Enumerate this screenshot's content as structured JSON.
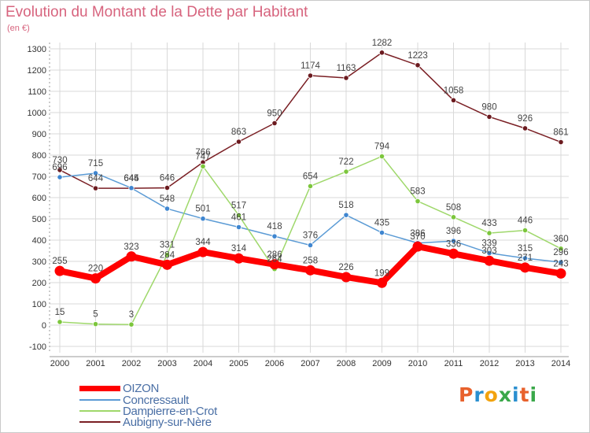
{
  "header": {
    "title": "Evolution du Montant de la Dette par Habitant",
    "subtitle": "(en €)"
  },
  "brand": {
    "text": "Proxiti",
    "letters": [
      "P",
      "r",
      "o",
      "x",
      "i",
      "t",
      "i"
    ],
    "letter_colors": [
      "#e8612c",
      "#2a8fd0",
      "#f2a30f",
      "#3aa84a",
      "#2a8fd0",
      "#e8612c",
      "#3aa84a"
    ]
  },
  "chart_data": {
    "type": "line",
    "title": "Evolution du Montant de la Dette par Habitant",
    "subtitle": "(en €)",
    "xlabel": "",
    "ylabel": "",
    "ylim": [
      -100,
      1300
    ],
    "yticks": [
      -100,
      0,
      100,
      200,
      300,
      400,
      500,
      600,
      700,
      800,
      900,
      1000,
      1100,
      1200,
      1300
    ],
    "x": [
      "2000",
      "2001",
      "2002",
      "2003",
      "2004",
      "2005",
      "2006",
      "2007",
      "2008",
      "2009",
      "2010",
      "2011",
      "2012",
      "2013",
      "2014"
    ],
    "grid": true,
    "legend_position": "bottom-left",
    "series": [
      {
        "name": "Aubigny-sur-Nère",
        "color": "#7a1f24",
        "marker_color": "#6b1a1f",
        "values": [
          730,
          644,
          644,
          646,
          766,
          863,
          950,
          1174,
          1163,
          1282,
          1223,
          1058,
          980,
          926,
          861
        ]
      },
      {
        "name": "Concressault",
        "color": "#5b9bd5",
        "marker_color": "#3f86d0",
        "values": [
          696,
          715,
          645,
          548,
          501,
          461,
          418,
          376,
          518,
          435,
          386,
          396,
          339,
          315,
          296
        ]
      },
      {
        "name": "Dampierre-en-Crot",
        "color": "#9fd86b",
        "marker_color": "#7cc63c",
        "values": [
          15,
          5,
          3,
          331,
          747,
          517,
          264,
          654,
          722,
          794,
          583,
          508,
          433,
          446,
          360
        ]
      },
      {
        "name": "OIZON",
        "color": "#ff0000",
        "marker_color": "#ff0000",
        "bold": true,
        "values": [
          255,
          220,
          323,
          284,
          344,
          314,
          286,
          258,
          226,
          199,
          370,
          336,
          303,
          271,
          243
        ]
      }
    ]
  },
  "legend": {
    "items": [
      {
        "label": "OIZON",
        "color": "#ff0000",
        "bold": true
      },
      {
        "label": "Concressault",
        "color": "#5b9bd5"
      },
      {
        "label": "Dampierre-en-Crot",
        "color": "#9fd86b"
      },
      {
        "label": "Aubigny-sur-Nère",
        "color": "#7a1f24"
      }
    ]
  },
  "colors": {
    "title": "#d7647e",
    "axis_text": "#333333",
    "grid": "#d9d9d9",
    "plot_bg": "#ffffff",
    "label_text": "#444444"
  }
}
